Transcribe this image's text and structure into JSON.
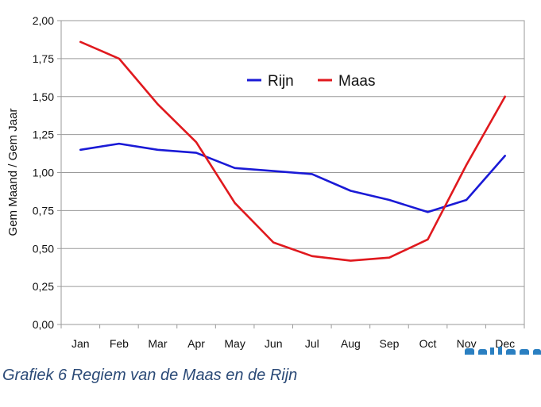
{
  "chart_data": {
    "type": "line",
    "title": "",
    "xlabel": "",
    "ylabel": "Gem Maand / Gem Jaar",
    "categories": [
      "Jan",
      "Feb",
      "Mar",
      "Apr",
      "May",
      "Jun",
      "Jul",
      "Aug",
      "Sep",
      "Oct",
      "Nov",
      "Dec"
    ],
    "ylim": [
      0,
      2
    ],
    "yticks": [
      "0,00",
      "0,25",
      "0,50",
      "0,75",
      "1,00",
      "1,25",
      "1,50",
      "1,75",
      "2,00"
    ],
    "grid": true,
    "legend_position": "top-center",
    "series": [
      {
        "name": "Rijn",
        "color": "#1a1ad6",
        "values": [
          1.15,
          1.19,
          1.15,
          1.13,
          1.03,
          1.01,
          0.99,
          0.88,
          0.82,
          0.74,
          0.82,
          1.11
        ]
      },
      {
        "name": "Maas",
        "color": "#e0191e",
        "values": [
          1.86,
          1.75,
          1.45,
          1.2,
          0.8,
          0.54,
          0.45,
          0.42,
          0.44,
          0.56,
          1.05,
          1.5
        ]
      }
    ]
  },
  "caption": "Grafiek 6 Regiem van de Maas en de Rijn"
}
